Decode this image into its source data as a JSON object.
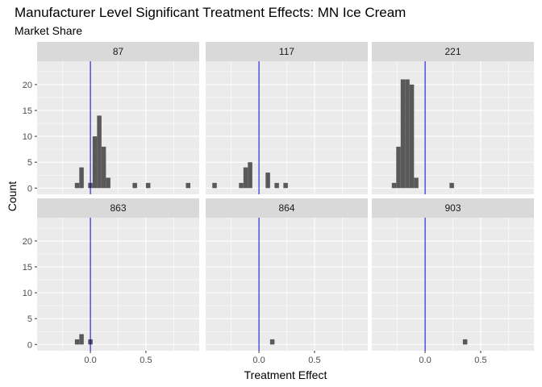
{
  "title": "Manufacturer Level Significant Treatment Effects: MN Ice Cream",
  "subtitle": "Market Share",
  "chart_data": {
    "type": "bar",
    "subtype": "faceted-histogram",
    "xlabel": "Treatment Effect",
    "ylabel": "Count",
    "xlim": [
      -0.48,
      0.98
    ],
    "ylim": [
      -1.2,
      24.5
    ],
    "x_ticks": [
      0.0,
      0.5
    ],
    "x_tick_labels": [
      "0.0",
      "0.5"
    ],
    "y_ticks": [
      0,
      5,
      10,
      15,
      20
    ],
    "y_tick_labels": [
      "0",
      "5",
      "10",
      "15",
      "20"
    ],
    "bin_width": 0.04,
    "reference_line_x": 0,
    "grid": true,
    "colors": {
      "bars": "#595959",
      "reference_line": "#0000cd",
      "panel_bg": "#ebebeb",
      "strip_bg": "#d9d9d9",
      "grid": "#ffffff"
    },
    "panels": [
      {
        "label": "87",
        "bins": [
          {
            "x": -0.12,
            "count": 1
          },
          {
            "x": -0.08,
            "count": 4
          },
          {
            "x": 0.0,
            "count": 1
          },
          {
            "x": 0.04,
            "count": 10
          },
          {
            "x": 0.08,
            "count": 14
          },
          {
            "x": 0.12,
            "count": 8
          },
          {
            "x": 0.16,
            "count": 2
          },
          {
            "x": 0.4,
            "count": 1
          },
          {
            "x": 0.52,
            "count": 1
          },
          {
            "x": 0.88,
            "count": 1
          }
        ]
      },
      {
        "label": "117",
        "bins": [
          {
            "x": -0.4,
            "count": 1
          },
          {
            "x": -0.16,
            "count": 1
          },
          {
            "x": -0.12,
            "count": 4
          },
          {
            "x": -0.08,
            "count": 5
          },
          {
            "x": 0.08,
            "count": 3
          },
          {
            "x": 0.16,
            "count": 1
          },
          {
            "x": 0.24,
            "count": 1
          }
        ]
      },
      {
        "label": "221",
        "bins": [
          {
            "x": -0.28,
            "count": 1
          },
          {
            "x": -0.24,
            "count": 8
          },
          {
            "x": -0.2,
            "count": 21
          },
          {
            "x": -0.16,
            "count": 21
          },
          {
            "x": -0.12,
            "count": 20
          },
          {
            "x": -0.08,
            "count": 2
          },
          {
            "x": 0.24,
            "count": 1
          }
        ]
      },
      {
        "label": "863",
        "bins": [
          {
            "x": -0.12,
            "count": 1
          },
          {
            "x": -0.08,
            "count": 2
          },
          {
            "x": 0.0,
            "count": 1
          }
        ]
      },
      {
        "label": "864",
        "bins": [
          {
            "x": 0.12,
            "count": 1
          }
        ]
      },
      {
        "label": "903",
        "bins": [
          {
            "x": 0.36,
            "count": 1
          }
        ]
      }
    ]
  }
}
